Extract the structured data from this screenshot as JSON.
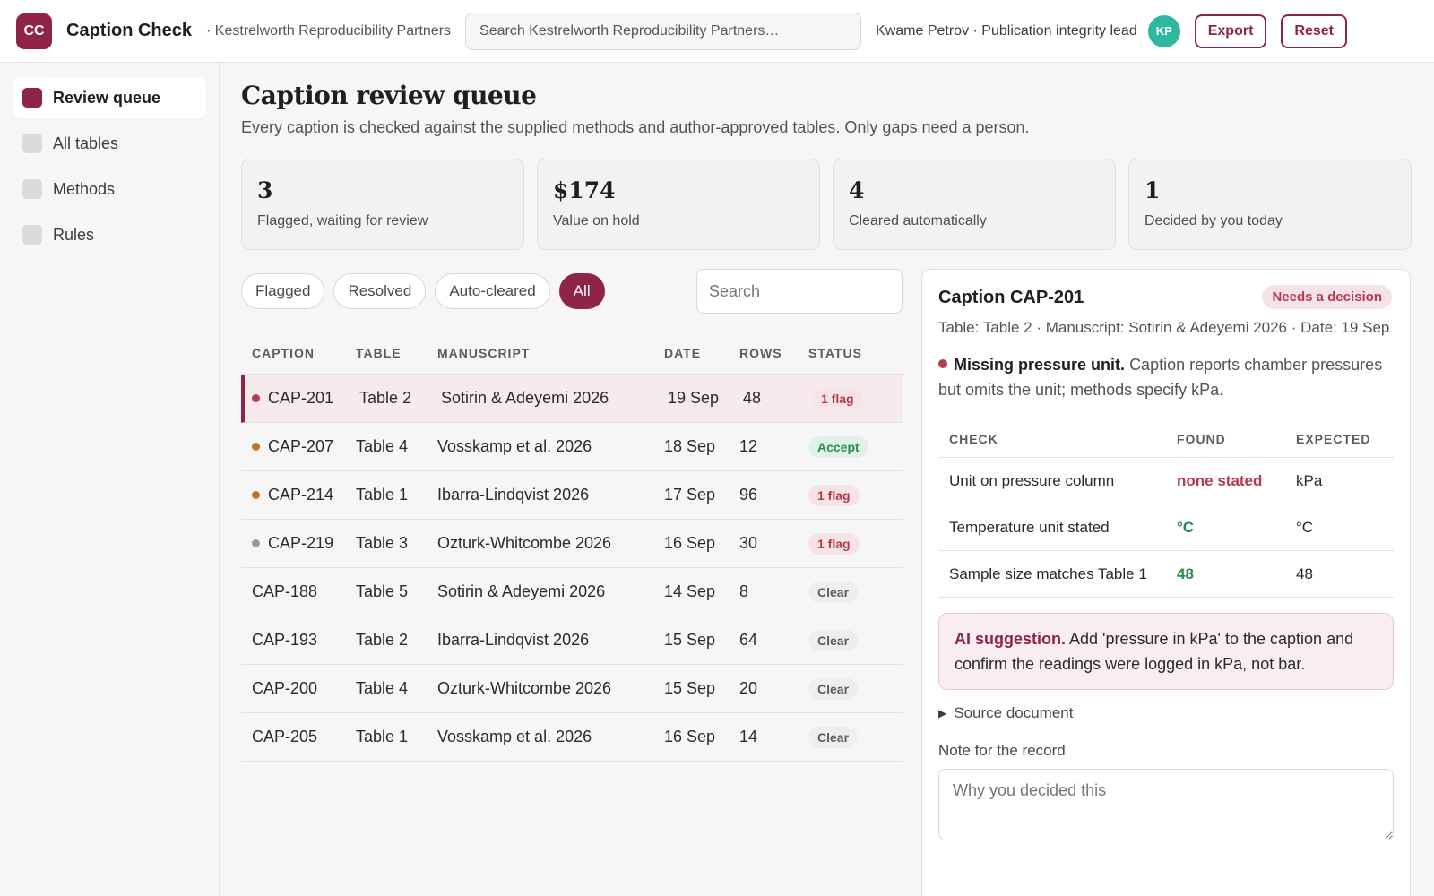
{
  "header": {
    "logo_text": "CC",
    "app_name": "Caption Check",
    "org_name": "· Kestrelworth Reproducibility Partners",
    "search_placeholder": "Search Kestrelworth Reproducibility Partners…",
    "user": "Kwame Petrov · Publication integrity lead",
    "avatar_initials": "KP",
    "export_label": "Export",
    "reset_label": "Reset"
  },
  "sidebar": {
    "items": [
      {
        "label": "Review queue",
        "active": true
      },
      {
        "label": "All tables",
        "active": false
      },
      {
        "label": "Methods",
        "active": false
      },
      {
        "label": "Rules",
        "active": false
      }
    ]
  },
  "page": {
    "title": "Caption review queue",
    "subtitle": "Every caption is checked against the supplied methods and author-approved tables. Only gaps need a person."
  },
  "stats": [
    {
      "value": "3",
      "label": "Flagged, waiting for review"
    },
    {
      "value": "$174",
      "label": "Value on hold"
    },
    {
      "value": "4",
      "label": "Cleared automatically"
    },
    {
      "value": "1",
      "label": "Decided by you today"
    }
  ],
  "filters": {
    "chips": [
      "Flagged",
      "Resolved",
      "Auto-cleared",
      "All"
    ],
    "active": "All",
    "search_placeholder": "Search"
  },
  "queue": {
    "columns": [
      "CAPTION",
      "TABLE",
      "MANUSCRIPT",
      "DATE",
      "ROWS",
      "STATUS"
    ],
    "rows": [
      {
        "caption": "CAP-201",
        "table": "Table 2",
        "manuscript": "Sotirin & Adeyemi 2026",
        "date": "19 Sep",
        "rows": "48",
        "status": "1 flag",
        "kind": "flag",
        "dot": "#b43a4e"
      },
      {
        "caption": "CAP-207",
        "table": "Table 4",
        "manuscript": "Vosskamp et al. 2026",
        "date": "18 Sep",
        "rows": "12",
        "status": "Accept",
        "kind": "accept",
        "dot": "#c2712b"
      },
      {
        "caption": "CAP-214",
        "table": "Table 1",
        "manuscript": "Ibarra-Lindqvist 2026",
        "date": "17 Sep",
        "rows": "96",
        "status": "1 flag",
        "kind": "flag",
        "dot": "#c2712b"
      },
      {
        "caption": "CAP-219",
        "table": "Table 3",
        "manuscript": "Ozturk-Whitcombe 2026",
        "date": "16 Sep",
        "rows": "30",
        "status": "1 flag",
        "kind": "flag",
        "dot": "#9a98a0"
      },
      {
        "caption": "CAP-188",
        "table": "Table 5",
        "manuscript": "Sotirin & Adeyemi 2026",
        "date": "14 Sep",
        "rows": "8",
        "status": "Clear",
        "kind": "clear",
        "dot": ""
      },
      {
        "caption": "CAP-193",
        "table": "Table 2",
        "manuscript": "Ibarra-Lindqvist 2026",
        "date": "15 Sep",
        "rows": "64",
        "status": "Clear",
        "kind": "clear",
        "dot": ""
      },
      {
        "caption": "CAP-200",
        "table": "Table 4",
        "manuscript": "Ozturk-Whitcombe 2026",
        "date": "15 Sep",
        "rows": "20",
        "status": "Clear",
        "kind": "clear",
        "dot": ""
      },
      {
        "caption": "CAP-205",
        "table": "Table 1",
        "manuscript": "Vosskamp et al. 2026",
        "date": "16 Sep",
        "rows": "14",
        "status": "Clear",
        "kind": "clear",
        "dot": ""
      }
    ],
    "selected_index": 0
  },
  "detail": {
    "title": "Caption CAP-201",
    "status": "Needs a decision",
    "meta": "Table: Table 2 · Manuscript: Sotirin & Adeyemi 2026 · Date: 19 Sep",
    "issue_title": "Missing pressure unit.",
    "issue_text": "Caption reports chamber pressures but omits the unit; methods specify kPa.",
    "check_columns": [
      "CHECK",
      "FOUND",
      "EXPECTED"
    ],
    "checks": [
      {
        "check": "Unit on pressure column",
        "found": "none stated",
        "expected": "kPa",
        "ok": false
      },
      {
        "check": "Temperature unit stated",
        "found": "°C",
        "expected": "°C",
        "ok": true
      },
      {
        "check": "Sample size matches Table 1",
        "found": "48",
        "expected": "48",
        "ok": true
      }
    ],
    "ai_label": "AI suggestion.",
    "ai_text": "Add 'pressure in kPa' to the caption and confirm the readings were logged in kPa, not bar.",
    "source_label": "Source document",
    "note_label": "Note for the record",
    "note_placeholder": "Why you decided this"
  },
  "colors": {
    "brand": "#8f2447",
    "flag": "#b43a4e",
    "ok": "#2a8a52",
    "warn": "#c2712b",
    "avatar": "#2fb8a0"
  }
}
